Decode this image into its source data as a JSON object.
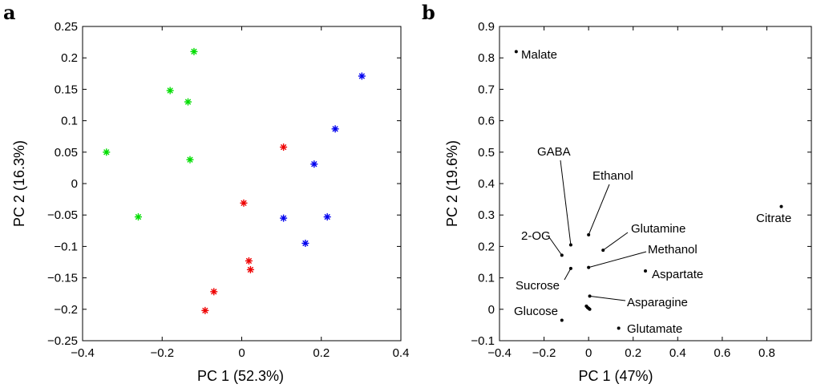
{
  "chart_data": [
    {
      "panel": "a",
      "type": "scatter",
      "xlabel": "PC 1 (52.3%)",
      "ylabel": "PC 2 (16.3%)",
      "xlim": [
        -0.4,
        0.4
      ],
      "ylim": [
        -0.25,
        0.25
      ],
      "xticks": [
        -0.4,
        -0.2,
        0,
        0.2,
        0.4
      ],
      "yticks": [
        -0.25,
        -0.2,
        -0.15,
        -0.1,
        -0.05,
        0,
        0.05,
        0.1,
        0.15,
        0.2,
        0.25
      ],
      "xtick_labels": [
        "−0.4",
        "−0.2",
        "0",
        "0.2",
        "0.4"
      ],
      "ytick_labels": [
        "−0.25",
        "−0.2",
        "−0.15",
        "−0.1",
        "−0.05",
        "0",
        "0.05",
        "0.1",
        "0.15",
        "0.2",
        "0.25"
      ],
      "marker": "*",
      "series": [
        {
          "name": "green",
          "color": "#00dd00",
          "points": [
            [
              -0.12,
              0.21
            ],
            [
              -0.18,
              0.148
            ],
            [
              -0.135,
              0.13
            ],
            [
              -0.34,
              0.05
            ],
            [
              -0.13,
              0.038
            ],
            [
              -0.26,
              -0.053
            ]
          ]
        },
        {
          "name": "red",
          "color": "#ee0000",
          "points": [
            [
              0.105,
              0.058
            ],
            [
              0.005,
              -0.031
            ],
            [
              0.018,
              -0.123
            ],
            [
              0.022,
              -0.137
            ],
            [
              -0.07,
              -0.172
            ],
            [
              -0.092,
              -0.202
            ]
          ]
        },
        {
          "name": "blue",
          "color": "#0000ee",
          "points": [
            [
              0.302,
              0.171
            ],
            [
              0.235,
              0.087
            ],
            [
              0.182,
              0.031
            ],
            [
              0.105,
              -0.055
            ],
            [
              0.215,
              -0.053
            ],
            [
              0.16,
              -0.095
            ]
          ]
        }
      ]
    },
    {
      "panel": "b",
      "type": "scatter",
      "xlabel": "PC 1 (47%)",
      "ylabel": "PC 2 (19.6%)",
      "xlim": [
        -0.4,
        1.0
      ],
      "ylim": [
        -0.1,
        0.9
      ],
      "xticks": [
        -0.4,
        -0.2,
        0,
        0.2,
        0.4,
        0.6,
        0.8
      ],
      "yticks": [
        -0.1,
        0,
        0.1,
        0.2,
        0.3,
        0.4,
        0.5,
        0.6,
        0.7,
        0.8,
        0.9
      ],
      "xtick_labels": [
        "−0.4",
        "−0.2",
        "0",
        "0.2",
        "0.4",
        "0.6",
        "0.8"
      ],
      "ytick_labels": [
        "−0.1",
        "0",
        "0.1",
        "0.2",
        "0.3",
        "0.4",
        "0.5",
        "0.6",
        "0.7",
        "0.8",
        "0.9"
      ],
      "marker": "dot",
      "points": [
        {
          "label": "Malate",
          "x": -0.325,
          "y": 0.82,
          "leader": false
        },
        {
          "label": "Citrate",
          "x": 0.865,
          "y": 0.327,
          "leader": false
        },
        {
          "label": "GABA",
          "x": -0.08,
          "y": 0.205,
          "leader": true
        },
        {
          "label": "Ethanol",
          "x": 0.0,
          "y": 0.237,
          "leader": true
        },
        {
          "label": "Glutamine",
          "x": 0.065,
          "y": 0.188,
          "leader": true
        },
        {
          "label": "2-OG",
          "x": -0.12,
          "y": 0.172,
          "leader": true
        },
        {
          "label": "Methanol",
          "x": 0.0,
          "y": 0.133,
          "leader": true
        },
        {
          "label": "Sucrose",
          "x": -0.08,
          "y": 0.13,
          "leader": true
        },
        {
          "label": "Aspartate",
          "x": 0.255,
          "y": 0.122,
          "leader": false
        },
        {
          "label": "Asparagine",
          "x": 0.005,
          "y": 0.042,
          "leader": true
        },
        {
          "label": "Glucose",
          "x": -0.12,
          "y": -0.035,
          "leader": false
        },
        {
          "label": "Glutamate",
          "x": 0.135,
          "y": -0.06,
          "leader": false
        },
        {
          "label": "",
          "x": -0.01,
          "y": 0.01,
          "leader": false
        },
        {
          "label": "",
          "x": 0.0,
          "y": 0.003,
          "leader": false
        },
        {
          "label": "",
          "x": 0.005,
          "y": 0.0,
          "leader": false
        },
        {
          "label": "",
          "x": -0.005,
          "y": 0.006,
          "leader": false
        }
      ]
    }
  ]
}
